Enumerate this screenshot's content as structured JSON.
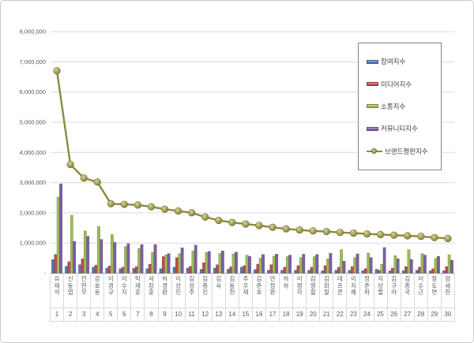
{
  "frame": {
    "background": "#ffffff",
    "border_color": "#c9c9c9"
  },
  "legend": {
    "position": "inside-top-right",
    "border_color": "#848484"
  },
  "chart_data": {
    "type": "combo",
    "title": "",
    "xlabel": "",
    "ylabel": "",
    "grid": "horizontal",
    "ylim": [
      0,
      8000000
    ],
    "y_ticks": [
      {
        "value": 8000000,
        "label": "8,000,000"
      },
      {
        "value": 7000000,
        "label": "7,000,000"
      },
      {
        "value": 6000000,
        "label": "6,000,000"
      },
      {
        "value": 5000000,
        "label": "5,000,000"
      },
      {
        "value": 4000000,
        "label": "4,000,000"
      },
      {
        "value": 3000000,
        "label": "3,000,000"
      },
      {
        "value": 2000000,
        "label": "2,000,000"
      },
      {
        "value": 1000000,
        "label": "1,000,000"
      },
      {
        "value": 0,
        "label": "-"
      }
    ],
    "categories": [
      "유재석",
      "신동엽",
      "전현무",
      "강호동",
      "이경규",
      "이수지",
      "탁재훈",
      "서장훈",
      "허경환",
      "이상민",
      "김성주",
      "김종민",
      "김숙",
      "김동현",
      "주우재",
      "김준호",
      "안정환",
      "하하",
      "이영자",
      "김영철",
      "김희철",
      "데프콘",
      "이지혜",
      "정준하",
      "지상렬",
      "김구라",
      "김종국",
      "이수근",
      "장도연",
      "양세찬"
    ],
    "ranks": [
      1,
      2,
      3,
      4,
      5,
      6,
      7,
      8,
      9,
      10,
      11,
      12,
      13,
      14,
      15,
      16,
      17,
      18,
      19,
      20,
      21,
      22,
      23,
      24,
      25,
      26,
      27,
      28,
      29,
      30
    ],
    "series": [
      {
        "name": "참여지수",
        "key": "participation",
        "type": "bar",
        "color": "#4e7ab5",
        "edge": "#35598b",
        "values": [
          450000,
          230000,
          280000,
          200000,
          170000,
          150000,
          160000,
          150000,
          150000,
          200000,
          170000,
          130000,
          170000,
          130000,
          200000,
          120000,
          100000,
          100000,
          100000,
          100000,
          80000,
          100000,
          100000,
          90000,
          130000,
          80000,
          80000,
          100000,
          80000,
          80000
        ]
      },
      {
        "name": "미디어지수",
        "key": "media",
        "type": "bar",
        "color": "#bf4b47",
        "edge": "#8e3734",
        "values": [
          620000,
          380000,
          480000,
          270000,
          240000,
          200000,
          220000,
          300000,
          550000,
          520000,
          230000,
          350000,
          280000,
          210000,
          250000,
          300000,
          280000,
          200000,
          250000,
          200000,
          250000,
          200000,
          220000,
          150000,
          100000,
          170000,
          220000,
          200000,
          150000,
          220000
        ]
      },
      {
        "name": "소통지수",
        "key": "communication",
        "type": "bar",
        "color": "#9bbb59",
        "edge": "#71893f",
        "values": [
          2520000,
          1920000,
          1400000,
          1550000,
          1280000,
          880000,
          820000,
          690000,
          610000,
          650000,
          740000,
          690000,
          660000,
          640000,
          600000,
          500000,
          570000,
          550000,
          520000,
          550000,
          480000,
          780000,
          520000,
          670000,
          300000,
          580000,
          780000,
          650000,
          490000,
          610000
        ]
      },
      {
        "name": "커뮤니티지수",
        "key": "community",
        "type": "bar",
        "color": "#7d5fa0",
        "edge": "#5c4677",
        "values": [
          2960000,
          1050000,
          1220000,
          1120000,
          1020000,
          980000,
          950000,
          950000,
          650000,
          840000,
          930000,
          720000,
          740000,
          700000,
          560000,
          620000,
          630000,
          600000,
          630000,
          620000,
          660000,
          400000,
          640000,
          520000,
          850000,
          480000,
          450000,
          600000,
          560000,
          430000
        ]
      },
      {
        "name": "브랜드평판지수",
        "key": "brand-index",
        "type": "line",
        "color": "#8a8a40",
        "marker_fill": "#a8a75a",
        "marker_edge": "#6d6d34",
        "values": [
          6700000,
          3600000,
          3150000,
          3020000,
          2300000,
          2280000,
          2260000,
          2200000,
          2120000,
          2060000,
          2000000,
          1860000,
          1750000,
          1680000,
          1630000,
          1580000,
          1520000,
          1470000,
          1430000,
          1400000,
          1380000,
          1350000,
          1330000,
          1300000,
          1280000,
          1260000,
          1240000,
          1220000,
          1180000,
          1150000
        ]
      }
    ]
  }
}
